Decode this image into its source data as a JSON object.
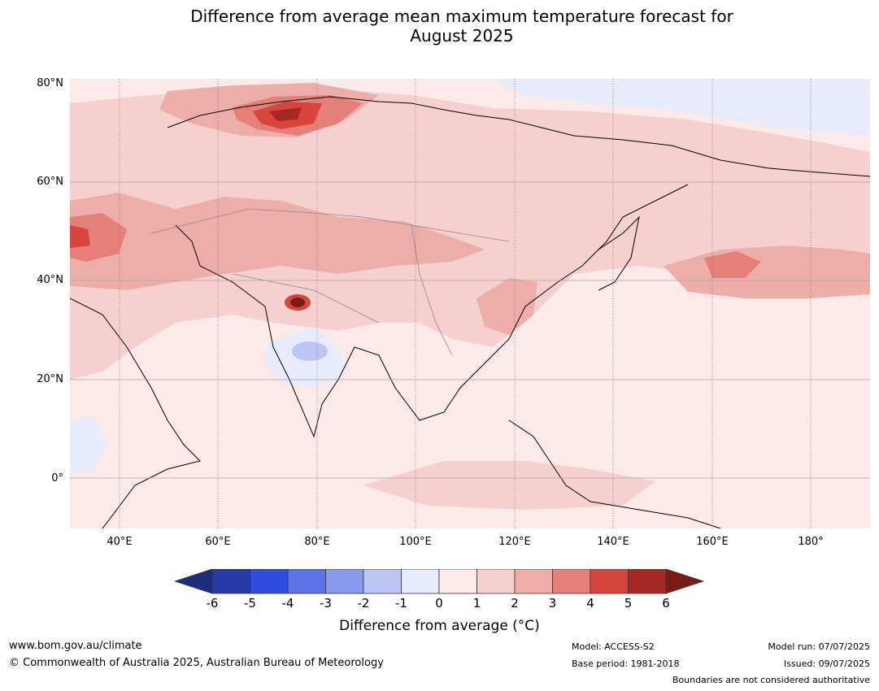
{
  "title_line1": "Difference from average mean maximum temperature forecast for",
  "title_line2": "August 2025",
  "lat_labels": [
    "80°N",
    "60°N",
    "40°N",
    "20°N",
    "0°"
  ],
  "lon_labels": [
    "40°E",
    "60°E",
    "80°E",
    "100°E",
    "120°E",
    "140°E",
    "160°E",
    "180°"
  ],
  "colorbar": {
    "ticks": [
      "-6",
      "-5",
      "-4",
      "-3",
      "-2",
      "-1",
      "0",
      "1",
      "2",
      "3",
      "4",
      "5",
      "6"
    ],
    "colors": [
      "#1c2c7e",
      "#263ba8",
      "#2f4ddf",
      "#5c72e6",
      "#8898ec",
      "#bcc5f4",
      "#e7ebfb",
      "#fce9e9",
      "#f6d0cf",
      "#edaeaa",
      "#e57f7a",
      "#d7453d",
      "#a82822",
      "#7a1b17"
    ],
    "label": "Difference from average (°C)"
  },
  "map": {
    "extent": {
      "lon_min": 30,
      "lon_max": 192,
      "lat_min": -10,
      "lat_max": 81
    },
    "background_color": "#fce9e9",
    "gridlines": "dotted"
  },
  "footer": {
    "website": "www.bom.gov.au/climate",
    "copyright": "© Commonwealth of Australia 2025, Australian Bureau of Meteorology",
    "model": "Model: ACCESS-S2",
    "base_period": "Base period: 1981-2018",
    "model_run": "Model run: 07/07/2025",
    "issued": "Issued: 09/07/2025",
    "disclaimer": "Boundaries are not considered authoritative"
  }
}
